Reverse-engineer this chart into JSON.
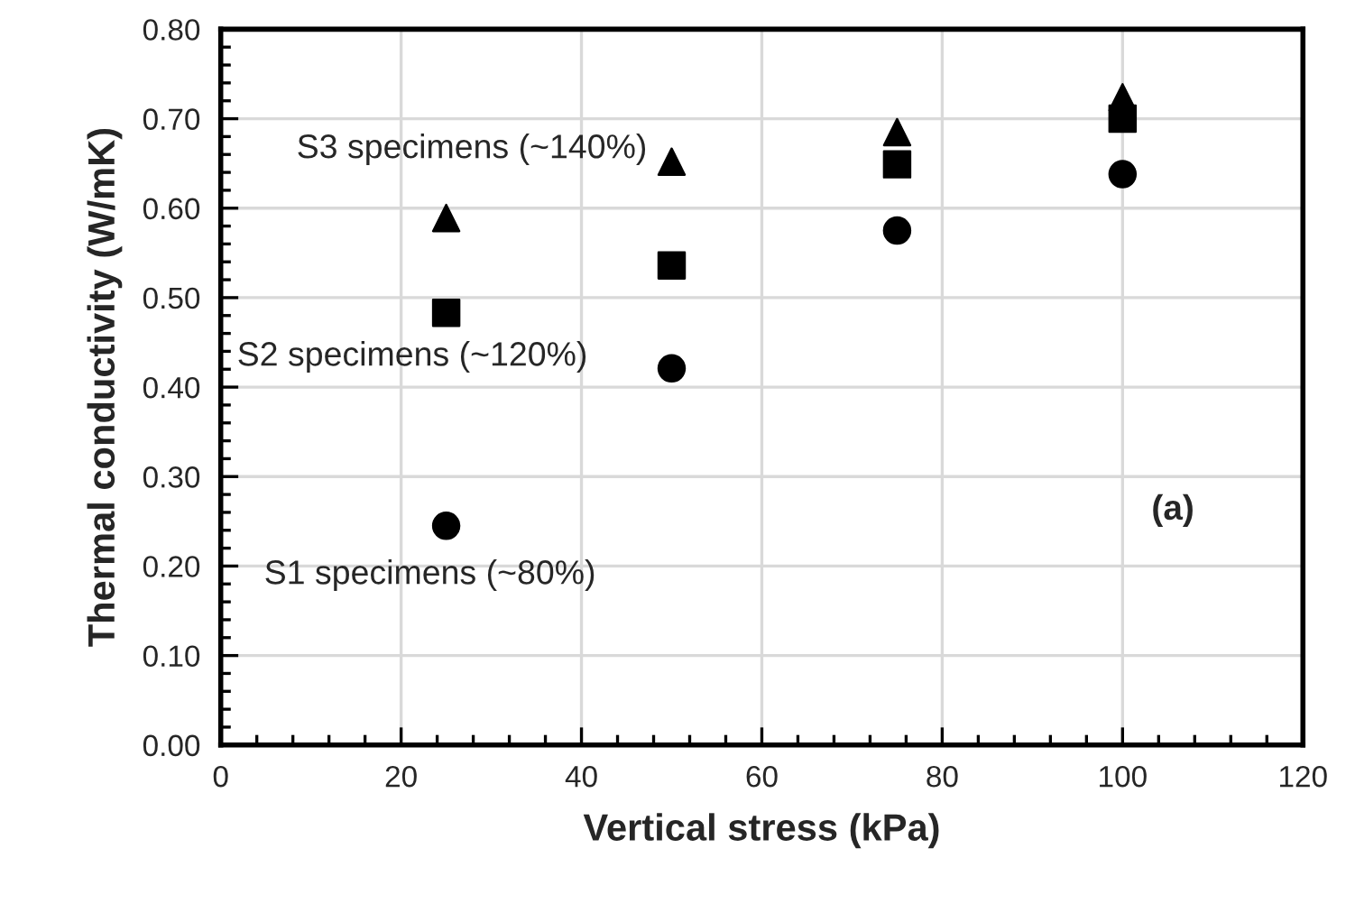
{
  "chart_data": {
    "type": "scatter",
    "xlabel": "Vertical stress (kPa)",
    "ylabel": "Thermal conductivity (W/mK)",
    "x": [
      25,
      50,
      75,
      100
    ],
    "series": [
      {
        "color": "#000000",
        "marker": "circle",
        "values": [
          0.245,
          0.421,
          0.575,
          0.638
        ]
      },
      {
        "color": "#000000",
        "marker": "square",
        "values": [
          0.483,
          0.536,
          0.649,
          0.7
        ]
      },
      {
        "color": "#000000",
        "marker": "triangle",
        "values": [
          0.589,
          0.652,
          0.685,
          0.724
        ]
      }
    ],
    "annotations": [
      "S3 specimens (~140%)",
      "S2 specimens (~120%)",
      "S1 specimens (~80%)",
      "(a)"
    ],
    "xlim": [
      0,
      120
    ],
    "xticks": [
      0,
      20,
      40,
      60,
      80,
      100,
      120
    ],
    "ylim": [
      0,
      0.8
    ],
    "yticks": [
      {
        "value": 0,
        "label": "0.00"
      },
      {
        "value": 0.1,
        "label": "0.10"
      },
      {
        "value": 0.2,
        "label": "0.20"
      },
      {
        "value": 0.3,
        "label": "0.30"
      },
      {
        "value": 0.4,
        "label": "0.40"
      },
      {
        "value": 0.5,
        "label": "0.50"
      },
      {
        "value": 0.6,
        "label": "0.60"
      },
      {
        "value": 0.7,
        "label": "0.70"
      },
      {
        "value": 0.8,
        "label": "0.80"
      }
    ],
    "grid": true
  }
}
